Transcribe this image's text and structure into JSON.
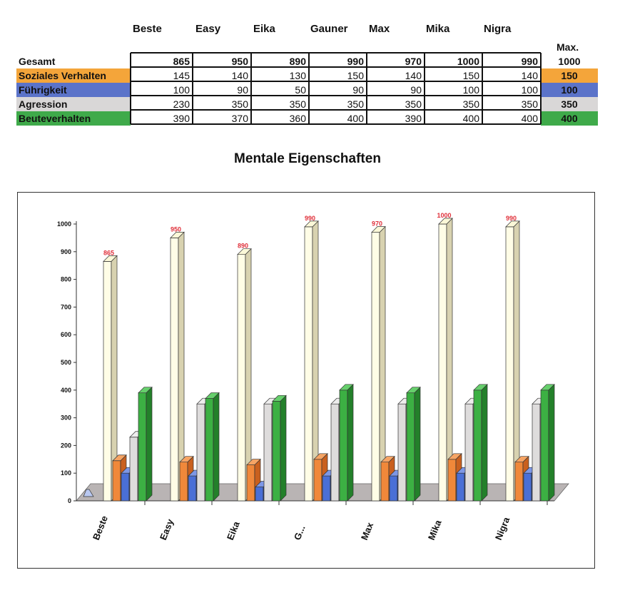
{
  "table": {
    "columns": [
      "Beste",
      "Easy",
      "Eika",
      "Gauner",
      "Max",
      "Mika",
      "Nigra"
    ],
    "max_header": "Max.",
    "rows": [
      {
        "label": "Gesamt",
        "values": [
          865,
          950,
          890,
          990,
          970,
          1000,
          990
        ],
        "max": 1000,
        "color": "#ffffff"
      },
      {
        "label": "Soziales Verhalten",
        "values": [
          145,
          140,
          130,
          150,
          140,
          150,
          140
        ],
        "max": 150,
        "color": "#f4a53a"
      },
      {
        "label": "Führigkeit",
        "values": [
          100,
          90,
          50,
          90,
          90,
          100,
          100
        ],
        "max": 100,
        "color": "#5b73c9"
      },
      {
        "label": "Agression",
        "values": [
          230,
          350,
          350,
          350,
          350,
          350,
          350
        ],
        "max": 350,
        "color": "#d9d7d7"
      },
      {
        "label": "Beuteverhalten",
        "values": [
          390,
          370,
          360,
          400,
          390,
          400,
          400
        ],
        "max": 400,
        "color": "#3faa4a"
      }
    ]
  },
  "chart_data": {
    "type": "bar",
    "title": "Mentale Eigenschaften",
    "categories": [
      "Beste",
      "Easy",
      "Eika",
      "G...",
      "Max",
      "Mika",
      "Nigra"
    ],
    "ylim": [
      0,
      1000
    ],
    "yticks": [
      0,
      100,
      200,
      300,
      400,
      500,
      600,
      700,
      800,
      900,
      1000
    ],
    "grid": false,
    "style": "3d-columns",
    "series": [
      {
        "values": [
          865,
          950,
          890,
          990,
          970,
          1000,
          990
        ],
        "color": "#fffde6",
        "side_color": "#d8d2b0",
        "top_color": "#fbf8d8",
        "labeled": true
      },
      {
        "values": [
          145,
          140,
          130,
          150,
          140,
          150,
          140
        ],
        "color": "#f0883a",
        "side_color": "#c9601e",
        "top_color": "#f6a464"
      },
      {
        "values": [
          100,
          90,
          50,
          90,
          90,
          100,
          100
        ],
        "color": "#4a6fd6",
        "side_color": "#2e4aa6",
        "top_color": "#7d97e6"
      },
      {
        "values": [
          230,
          350,
          350,
          350,
          350,
          350,
          350
        ],
        "color": "#dedcdc",
        "side_color": "#a9a6a6",
        "top_color": "#eeeded"
      },
      {
        "values": [
          390,
          370,
          360,
          400,
          390,
          400,
          400
        ],
        "color": "#3cb043",
        "side_color": "#23802a",
        "top_color": "#66cf6c"
      }
    ],
    "value_label_color": "#e0303a",
    "floor_color": "#b9b4b4"
  }
}
